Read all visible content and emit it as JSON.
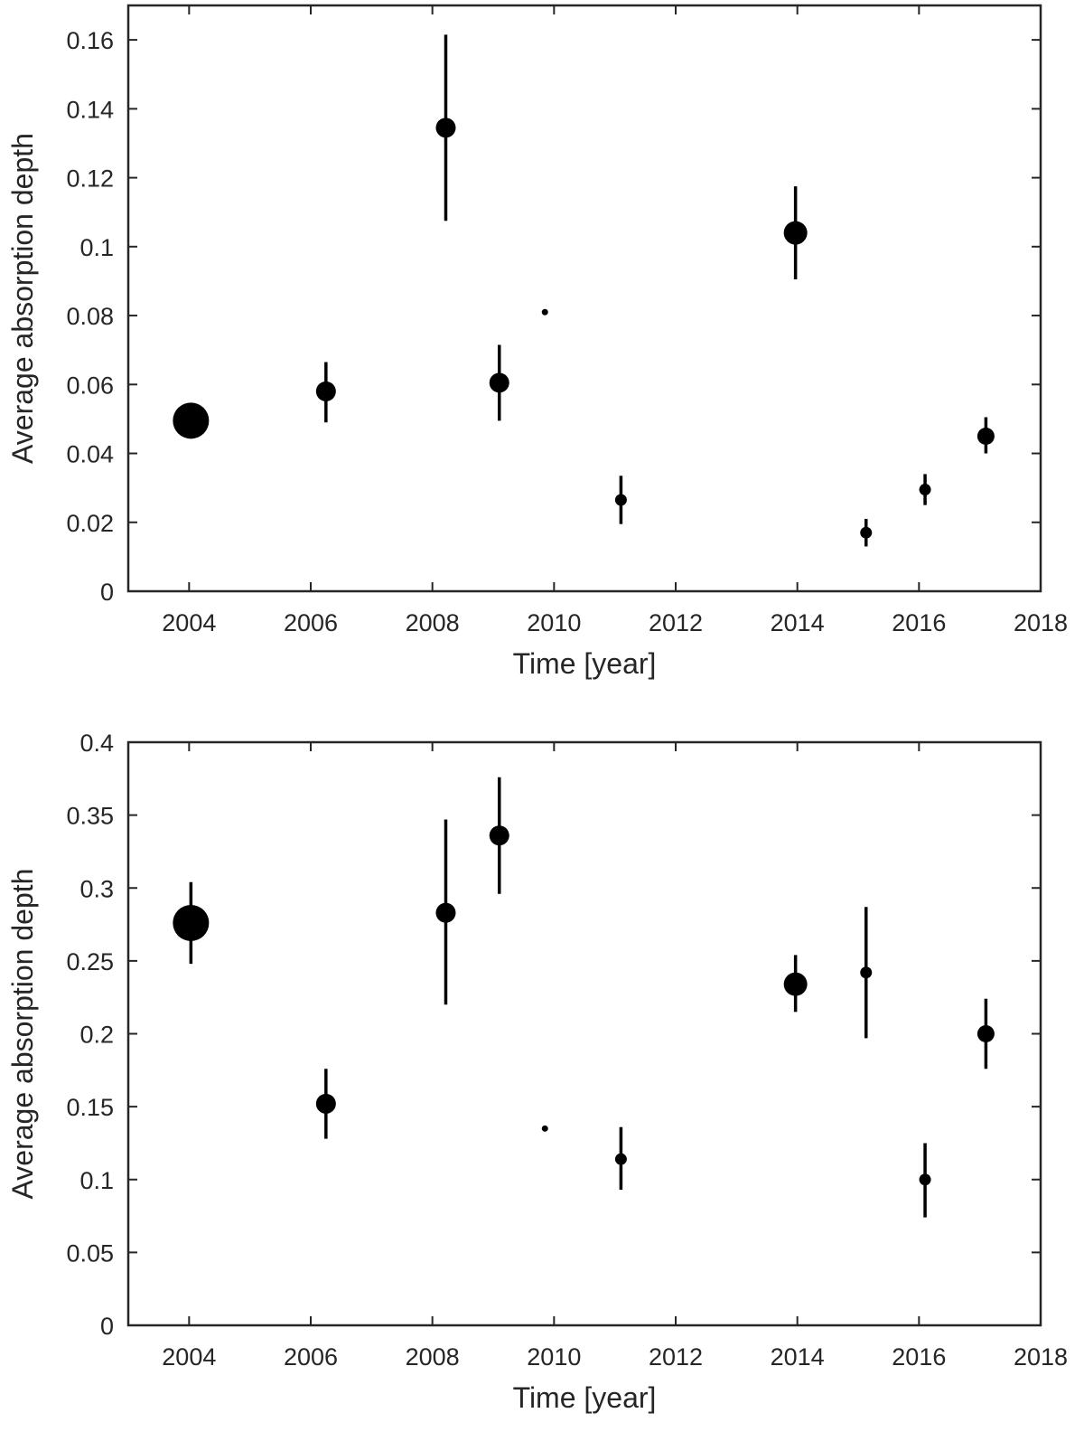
{
  "chart_data": [
    {
      "type": "scatter",
      "xlabel": "Time [year]",
      "ylabel": "Average absorption depth",
      "xlim": [
        2003,
        2018
      ],
      "ylim": [
        0,
        0.17
      ],
      "xticks": [
        2004,
        2006,
        2008,
        2010,
        2012,
        2014,
        2016,
        2018
      ],
      "yticks": [
        0,
        0.02,
        0.04,
        0.06,
        0.08,
        0.1,
        0.12,
        0.14,
        0.16
      ],
      "ytick_labels": [
        "0",
        "0.02",
        "0.04",
        "0.06",
        "0.08",
        "0.1",
        "0.12",
        "0.14",
        "0.16"
      ],
      "grid": false,
      "legend": "none",
      "marker_size_encodes": "relative weight (larger marker = larger weight)",
      "points": [
        {
          "x": 2004.03,
          "y": 0.0495,
          "err_low": 0.0495,
          "err_high": 0.0495,
          "size": 20
        },
        {
          "x": 2006.25,
          "y": 0.058,
          "err_low": 0.049,
          "err_high": 0.0665,
          "size": 11
        },
        {
          "x": 2008.22,
          "y": 0.1345,
          "err_low": 0.1075,
          "err_high": 0.1615,
          "size": 11
        },
        {
          "x": 2009.1,
          "y": 0.0605,
          "err_low": 0.0495,
          "err_high": 0.0715,
          "size": 11
        },
        {
          "x": 2009.85,
          "y": 0.081,
          "err_low": 0.081,
          "err_high": 0.081,
          "size": 3.5
        },
        {
          "x": 2011.1,
          "y": 0.0265,
          "err_low": 0.0195,
          "err_high": 0.0335,
          "size": 6.5
        },
        {
          "x": 2013.97,
          "y": 0.104,
          "err_low": 0.0905,
          "err_high": 0.1175,
          "size": 13
        },
        {
          "x": 2015.13,
          "y": 0.017,
          "err_low": 0.013,
          "err_high": 0.021,
          "size": 6.5
        },
        {
          "x": 2016.1,
          "y": 0.0295,
          "err_low": 0.025,
          "err_high": 0.034,
          "size": 6.5
        },
        {
          "x": 2017.1,
          "y": 0.045,
          "err_low": 0.04,
          "err_high": 0.0505,
          "size": 9.5
        }
      ]
    },
    {
      "type": "scatter",
      "xlabel": "Time [year]",
      "ylabel": "Average absorption depth",
      "xlim": [
        2003,
        2018
      ],
      "ylim": [
        0,
        0.4
      ],
      "xticks": [
        2004,
        2006,
        2008,
        2010,
        2012,
        2014,
        2016,
        2018
      ],
      "yticks": [
        0,
        0.05,
        0.1,
        0.15,
        0.2,
        0.25,
        0.3,
        0.35,
        0.4
      ],
      "ytick_labels": [
        "0",
        "0.05",
        "0.1",
        "0.15",
        "0.2",
        "0.25",
        "0.3",
        "0.35",
        "0.4"
      ],
      "grid": false,
      "legend": "none",
      "marker_size_encodes": "relative weight (larger marker = larger weight)",
      "points": [
        {
          "x": 2004.03,
          "y": 0.276,
          "err_low": 0.248,
          "err_high": 0.304,
          "size": 20
        },
        {
          "x": 2006.25,
          "y": 0.152,
          "err_low": 0.128,
          "err_high": 0.176,
          "size": 11
        },
        {
          "x": 2008.22,
          "y": 0.283,
          "err_low": 0.22,
          "err_high": 0.347,
          "size": 11
        },
        {
          "x": 2009.1,
          "y": 0.336,
          "err_low": 0.296,
          "err_high": 0.376,
          "size": 11
        },
        {
          "x": 2009.85,
          "y": 0.135,
          "err_low": 0.135,
          "err_high": 0.135,
          "size": 3.5
        },
        {
          "x": 2011.1,
          "y": 0.114,
          "err_low": 0.093,
          "err_high": 0.136,
          "size": 6.5
        },
        {
          "x": 2013.97,
          "y": 0.234,
          "err_low": 0.215,
          "err_high": 0.254,
          "size": 13
        },
        {
          "x": 2015.13,
          "y": 0.242,
          "err_low": 0.197,
          "err_high": 0.287,
          "size": 6.5
        },
        {
          "x": 2016.1,
          "y": 0.1,
          "err_low": 0.074,
          "err_high": 0.125,
          "size": 6.5
        },
        {
          "x": 2017.1,
          "y": 0.2,
          "err_low": 0.176,
          "err_high": 0.224,
          "size": 9.5
        }
      ]
    }
  ]
}
